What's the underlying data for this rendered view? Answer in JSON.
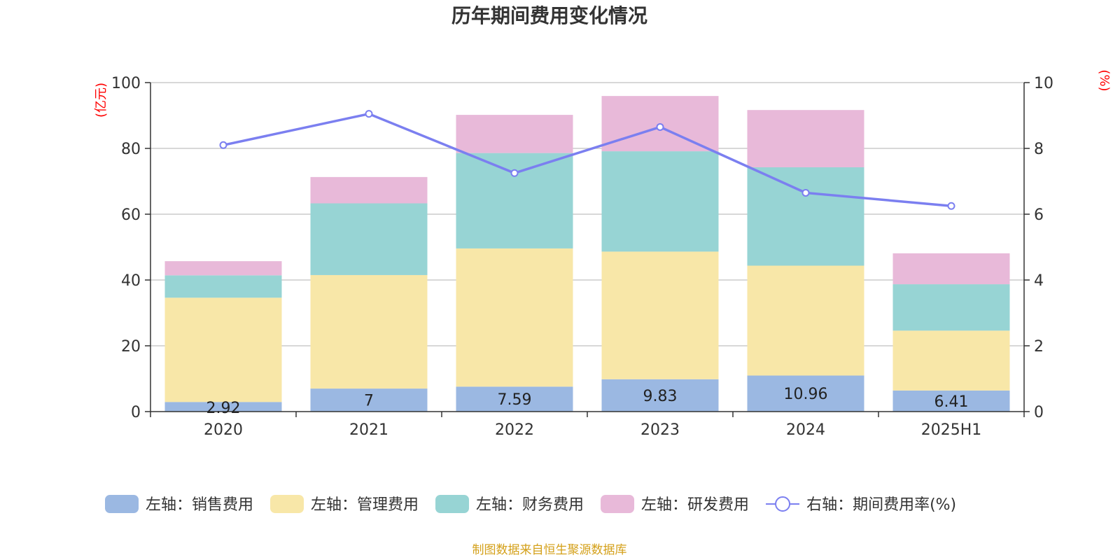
{
  "chart_data": {
    "type": "bar",
    "title": "历年期间费用变化情况",
    "categories": [
      "2020",
      "2021",
      "2022",
      "2023",
      "2024",
      "2025H1"
    ],
    "left_axis": {
      "unit": "(亿元)",
      "ylim": [
        0,
        100
      ],
      "ticks": [
        "0",
        "20",
        "40",
        "60",
        "80",
        "100"
      ]
    },
    "right_axis": {
      "unit": "(%)",
      "ylim": [
        0,
        10
      ],
      "ticks": [
        "0",
        "2",
        "4",
        "6",
        "8",
        "10"
      ]
    },
    "stacked": true,
    "grid": true,
    "legend_position": "bottom",
    "series": [
      {
        "name": "左轴：销售费用",
        "axis": "left",
        "color": "#9bb8e2",
        "values": [
          2.92,
          7,
          7.59,
          9.83,
          10.96,
          6.41
        ],
        "labels": [
          "2.92",
          "7",
          "7.59",
          "9.83",
          "10.96",
          "6.41"
        ]
      },
      {
        "name": "左轴：管理费用",
        "axis": "left",
        "color": "#f8e7a8",
        "values": [
          31.7,
          34.5,
          42.0,
          38.8,
          33.4,
          18.2
        ]
      },
      {
        "name": "左轴：财务费用",
        "axis": "left",
        "color": "#97d4d4",
        "values": [
          6.8,
          21.8,
          29.0,
          30.5,
          29.9,
          14.1
        ]
      },
      {
        "name": "左轴：研发费用",
        "axis": "left",
        "color": "#e8b9d9",
        "values": [
          4.3,
          8.0,
          11.6,
          16.8,
          17.4,
          9.4
        ]
      },
      {
        "name": "右轴：期间费用率(%)",
        "axis": "right",
        "type": "line",
        "color": "#7b7ff0",
        "values": [
          8.1,
          9.05,
          7.25,
          8.65,
          6.65,
          6.25
        ]
      }
    ]
  },
  "source": "制图数据来自恒生聚源数据库"
}
